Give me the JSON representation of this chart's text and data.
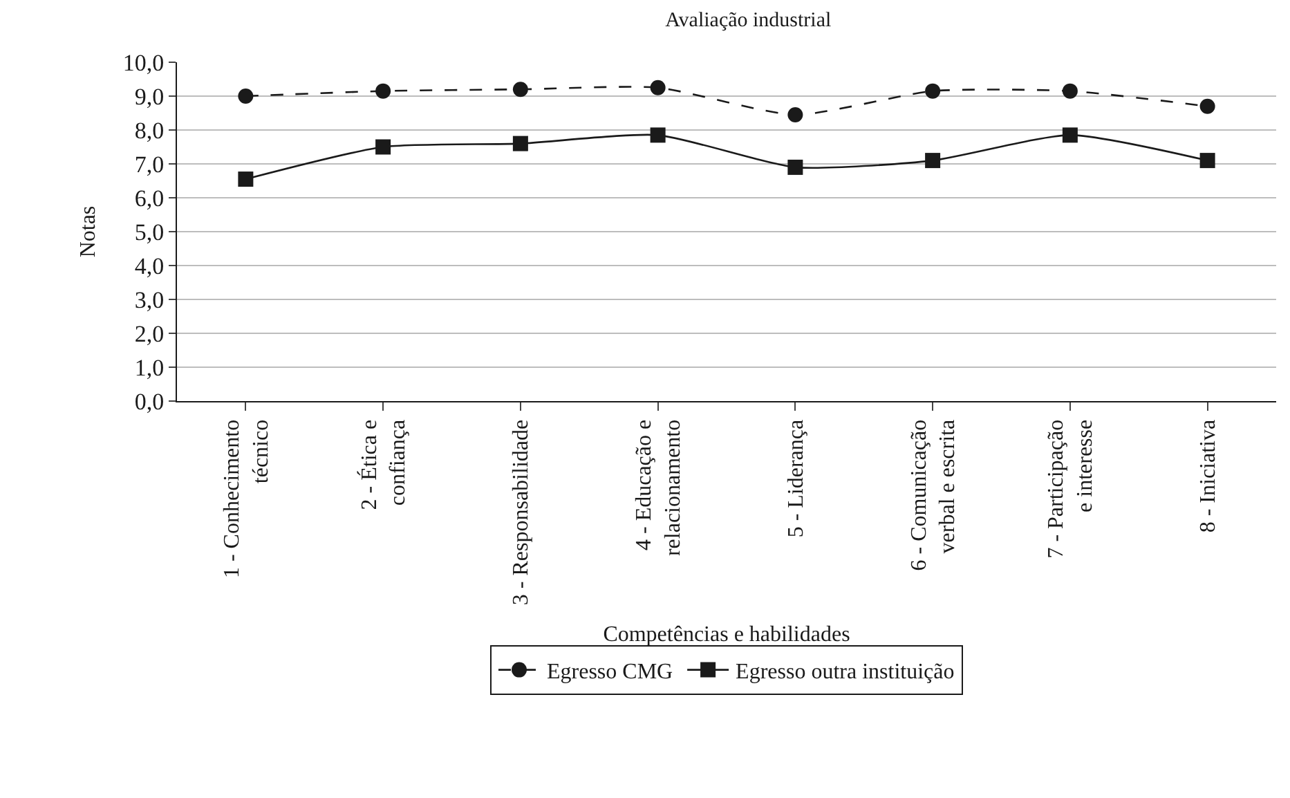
{
  "chart_data": {
    "type": "line",
    "title": "Avaliação industrial",
    "xlabel": "Competências e habilidades",
    "ylabel": "Notas",
    "categories": [
      "1 - Conhecimento\ntécnico",
      "2 - Ética e\nconfiança",
      "3 - Responsabilidade",
      "4 - Educação e\nrelacionamento",
      "5 - Liderança",
      "6 - Comunicação\nverbal e escrita",
      "7 - Participação\ne interesse",
      "8 - Iniciativa"
    ],
    "series": [
      {
        "name": "Egresso CMG",
        "color": "#1a1a1a",
        "values": [
          9.0,
          9.15,
          9.2,
          9.25,
          8.45,
          9.15,
          9.15,
          8.7
        ],
        "marker": "circle",
        "line_style": "dashed"
      },
      {
        "name": "Egresso outra instituição",
        "color": "#1a1a1a",
        "values": [
          6.55,
          7.5,
          7.6,
          7.85,
          6.9,
          7.1,
          7.85,
          7.1
        ],
        "marker": "square",
        "line_style": "solid"
      }
    ],
    "ylim": [
      0,
      10
    ],
    "yticks": [
      {
        "value": 0,
        "label": "0,0"
      },
      {
        "value": 1,
        "label": "1,0"
      },
      {
        "value": 2,
        "label": "2,0"
      },
      {
        "value": 3,
        "label": "3,0"
      },
      {
        "value": 4,
        "label": "4,0"
      },
      {
        "value": 5,
        "label": "5,0"
      },
      {
        "value": 6,
        "label": "6,0"
      },
      {
        "value": 7,
        "label": "7,0"
      },
      {
        "value": 8,
        "label": "8,0"
      },
      {
        "value": 9,
        "label": "9,0"
      },
      {
        "value": 10,
        "label": "10,0"
      }
    ],
    "grid": "y",
    "legend": "bottom"
  }
}
